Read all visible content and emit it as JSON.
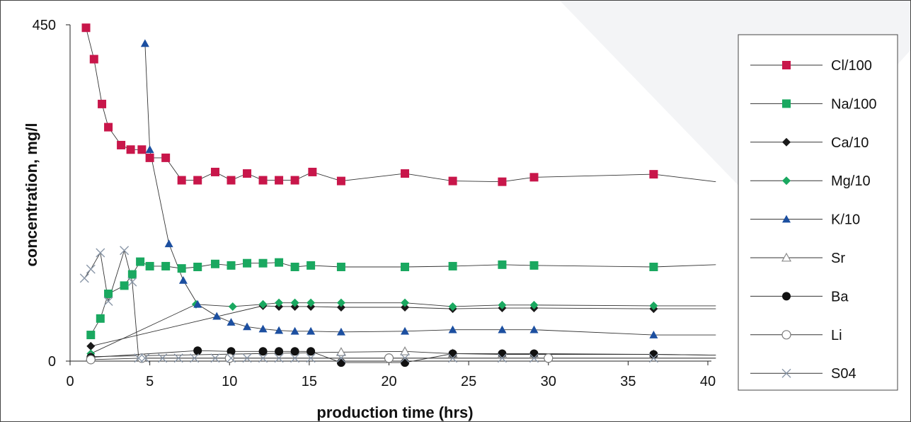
{
  "chart_data": {
    "type": "line",
    "title": "",
    "xlabel": "production time (hrs)",
    "ylabel": "concentration, mg/l",
    "xlim": [
      0,
      40
    ],
    "ylim": [
      0,
      450
    ],
    "x_ticks": [
      0,
      5,
      10,
      15,
      20,
      25,
      30,
      35,
      40
    ],
    "x_tick_labels": [
      "0",
      "5",
      "10",
      "15",
      "20",
      "25",
      "30",
      "35",
      "40"
    ],
    "y_ticks": [
      0,
      450
    ],
    "y_tick_labels": [
      "0",
      "450"
    ],
    "grid": false,
    "legend_position": "right",
    "series": [
      {
        "name": "Cl/100",
        "marker": "square",
        "color": "#c8164a",
        "x": [
          1,
          1.5,
          2,
          2.4,
          3.2,
          3.8,
          4.5,
          5,
          6,
          7,
          8,
          9.1,
          10.1,
          11.1,
          12.1,
          13.1,
          14.1,
          15.2,
          17,
          21,
          24,
          27.1,
          29.1,
          36.6,
          40.5
        ],
        "y": [
          446,
          404,
          344,
          313,
          289,
          283,
          283,
          272,
          272,
          242,
          242,
          253,
          242,
          251,
          242,
          242,
          242,
          253,
          241,
          251,
          241,
          240,
          246,
          250,
          240
        ]
      },
      {
        "name": "Na/100",
        "marker": "square",
        "color": "#1aa860",
        "x": [
          1.3,
          1.9,
          2.4,
          3.4,
          3.9,
          4.4,
          5,
          6,
          7,
          8,
          9.1,
          10.1,
          11.1,
          12.1,
          13.1,
          14.1,
          15.1,
          17,
          21,
          24,
          27.1,
          29.1,
          36.6,
          40.5
        ],
        "y": [
          35,
          57,
          90,
          101,
          116,
          133,
          127,
          127,
          124,
          126,
          130,
          128,
          131,
          131,
          132,
          126,
          128,
          126,
          126,
          127,
          129,
          128,
          126,
          129
        ]
      },
      {
        "name": "Ca/10",
        "marker": "diamond",
        "color": "#1a1a1a",
        "x": [
          1.3,
          12.1,
          13.1,
          14.1,
          15.1,
          17,
          21,
          24,
          27.1,
          29.1,
          36.6,
          40.5
        ],
        "y": [
          20,
          74,
          73,
          73,
          73,
          72,
          72,
          70,
          71,
          71,
          70,
          70
        ]
      },
      {
        "name": "Mg/10",
        "marker": "diamond",
        "color": "#1aa860",
        "x": [
          1.3,
          7.9,
          10.2,
          12.1,
          13.1,
          14.1,
          15.1,
          17,
          21,
          24,
          27.1,
          29.1,
          36.6,
          40.5
        ],
        "y": [
          10,
          76,
          73,
          76,
          78,
          78,
          78,
          78,
          78,
          73,
          75,
          75,
          74,
          74
        ]
      },
      {
        "name": "K/10",
        "marker": "triangle",
        "color": "#1c4fa0",
        "x": [
          4.7,
          5,
          6.2,
          7.1,
          8,
          9.2,
          10.1,
          11.1,
          12.1,
          13.1,
          14.1,
          15.1,
          17,
          21,
          24,
          27.1,
          29.1,
          36.6,
          40.5
        ],
        "y": [
          425,
          283,
          157,
          108,
          76,
          60,
          52,
          46,
          43,
          41,
          40,
          40,
          39,
          40,
          42,
          42,
          42,
          35,
          35
        ]
      },
      {
        "name": "Sr",
        "marker": "triangle-open",
        "color": "#8a8a8a",
        "x": [
          1.3,
          17,
          21,
          24,
          27.1,
          29.1,
          36.6,
          40.5
        ],
        "y": [
          6,
          12,
          13,
          10,
          9,
          9,
          9,
          8
        ]
      },
      {
        "name": "Ba",
        "marker": "circle",
        "color": "#111111",
        "x": [
          1.3,
          8,
          10.1,
          12.1,
          13.1,
          14.1,
          15.1,
          17,
          21,
          24,
          27.1,
          29.1,
          36.6,
          40.5
        ],
        "y": [
          5,
          14,
          13,
          13,
          13,
          13,
          13,
          -2,
          -2,
          10,
          10,
          10,
          9,
          8
        ]
      },
      {
        "name": "Li",
        "marker": "circle-open",
        "color": "#7a7a7a",
        "x": [
          1.3,
          4.5,
          10,
          20,
          30,
          40.5
        ],
        "y": [
          2,
          4,
          4,
          4,
          4,
          4
        ]
      },
      {
        "name": "S04",
        "marker": "x",
        "color": "#8a97a8",
        "x": [
          0.9,
          1.3,
          1.9,
          2.4,
          3.4,
          3.9,
          4.3,
          4.7,
          5.8,
          6.8,
          7.8,
          9.1,
          10.1,
          11.1,
          12.1,
          13.1,
          14.1,
          15.1,
          17,
          21,
          24,
          27.1,
          29.1,
          36.6,
          40.5
        ],
        "y": [
          111,
          123,
          145,
          80,
          148,
          106,
          4,
          4,
          4,
          4,
          4,
          4,
          4,
          4,
          4,
          4,
          4,
          4,
          4,
          4,
          4,
          4,
          4,
          4,
          4
        ]
      }
    ]
  }
}
